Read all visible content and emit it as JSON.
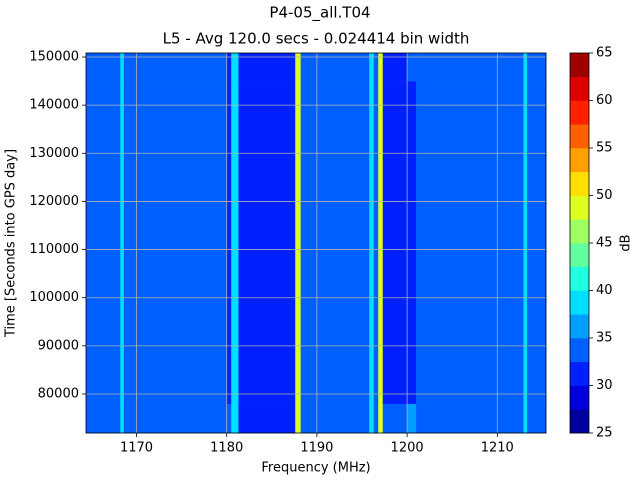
{
  "chart_data": {
    "type": "heatmap",
    "title": "P4-05_all.T04",
    "subtitle": "L5 - Avg 120.0 secs - 0.024414 bin width",
    "x_label": "Frequency (MHz)",
    "y_label": "Time [Seconds into GPS day]",
    "colorbar_label": "dB",
    "x_edges": [
      1164.4,
      1168.2,
      1168.6,
      1180,
      1180.5,
      1181.3,
      1187.6,
      1188.2,
      1195.8,
      1196.3,
      1196.8,
      1197.3,
      1200,
      1201,
      1212.9,
      1213.3,
      1215.4
    ],
    "y_edges": [
      71900,
      78000,
      88000,
      145000,
      150830
    ],
    "values": [
      [
        33.75,
        39,
        33.75,
        33.75,
        38,
        32,
        49,
        33.75,
        39,
        33.75,
        49,
        33.75,
        37,
        33.75,
        39,
        33.75
      ],
      [
        33.75,
        39,
        33.75,
        31,
        38,
        30,
        49,
        33.75,
        39,
        33.75,
        49,
        31,
        32,
        33.75,
        39,
        33.75
      ],
      [
        33.75,
        39,
        33.75,
        31,
        38,
        30,
        49,
        33.75,
        39,
        33.75,
        49,
        31,
        32,
        33.75,
        39,
        33.75
      ],
      [
        33.75,
        39,
        33.75,
        31,
        38,
        31,
        49,
        33.75,
        39,
        33.75,
        49,
        32,
        33.75,
        33.75,
        39,
        33.75
      ]
    ],
    "xlim": [
      1164.4,
      1215.4
    ],
    "xticks": [
      1170,
      1180,
      1190,
      1200,
      1210
    ],
    "ylim": [
      71900,
      150830
    ],
    "yticks": [
      80000,
      90000,
      100000,
      110000,
      120000,
      130000,
      140000,
      150000
    ],
    "clim": [
      25,
      65
    ],
    "cticks": [
      25,
      30,
      35,
      40,
      45,
      50,
      55,
      60,
      65
    ],
    "colors": [
      "#00009f",
      "#0000df",
      "#0020ff",
      "#0060ff",
      "#009fff",
      "#00dfff",
      "#20ffdf",
      "#60ff9f",
      "#9fff60",
      "#dfff20",
      "#ffdf00",
      "#ff9f00",
      "#ff6000",
      "#ff2000",
      "#df0000",
      "#9f0000"
    ],
    "grid": true
  }
}
